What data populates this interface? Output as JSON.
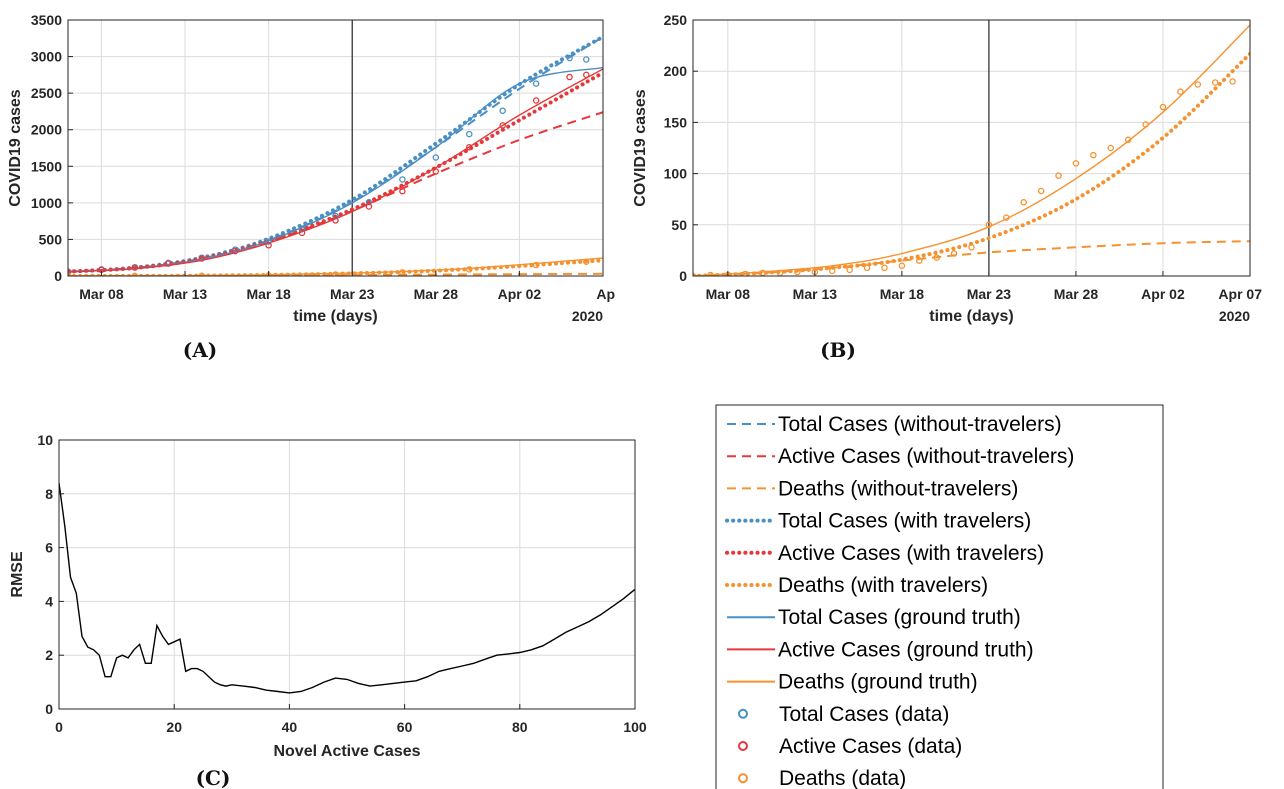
{
  "colors": {
    "total": "#4a8fc4",
    "active": "#e5383b",
    "deaths": "#f5922f",
    "rmse": "#000000"
  },
  "chart_data": [
    {
      "type": "line",
      "panel": "(A)",
      "xlabel": "time (days)",
      "ylabel": "COVID19 cases",
      "year_label": "2020",
      "x_ticks": [
        "Mar 08",
        "Mar 13",
        "Mar 18",
        "Mar 23",
        "Mar 28",
        "Apr 02",
        "Ap"
      ],
      "x_tick_days": [
        2,
        7,
        12,
        17,
        22,
        27,
        32
      ],
      "xlim_days": [
        0,
        32
      ],
      "ylim": [
        0,
        3500
      ],
      "y_ticks": [
        0,
        500,
        1000,
        1500,
        2000,
        2500,
        3000,
        3500
      ],
      "grid": true,
      "vline_day": 17,
      "series": [
        {
          "name": "Total Cases (without-travelers)",
          "group": "total",
          "style": "dashed",
          "days": [
            0,
            4,
            8,
            12,
            17,
            22,
            27,
            32
          ],
          "values": [
            60,
            110,
            240,
            490,
            1010,
            1760,
            2560,
            3270
          ]
        },
        {
          "name": "Active Cases (without-travelers)",
          "group": "active",
          "style": "dashed",
          "days": [
            0,
            4,
            8,
            12,
            17,
            22,
            27,
            32
          ],
          "values": [
            60,
            110,
            230,
            470,
            890,
            1400,
            1860,
            2240
          ]
        },
        {
          "name": "Deaths (without-travelers)",
          "group": "deaths",
          "style": "dashed",
          "days": [
            0,
            8,
            17,
            24,
            32
          ],
          "values": [
            0,
            3,
            12,
            22,
            30
          ]
        },
        {
          "name": "Total Cases (with travelers)",
          "group": "total",
          "style": "dotted",
          "days": [
            0,
            4,
            8,
            12,
            17,
            22,
            27,
            32
          ],
          "values": [
            60,
            115,
            250,
            510,
            1040,
            1810,
            2620,
            3270
          ]
        },
        {
          "name": "Active Cases (with travelers)",
          "group": "active",
          "style": "dotted",
          "days": [
            0,
            4,
            8,
            12,
            17,
            22,
            27,
            32
          ],
          "values": [
            60,
            110,
            235,
            480,
            910,
            1480,
            2130,
            2780
          ]
        },
        {
          "name": "Deaths (with travelers)",
          "group": "deaths",
          "style": "dotted",
          "days": [
            0,
            8,
            17,
            24,
            32
          ],
          "values": [
            0,
            5,
            35,
            95,
            215
          ]
        },
        {
          "name": "Total Cases (ground truth)",
          "group": "total",
          "style": "solid",
          "days": [
            0,
            4,
            8,
            12,
            17,
            22,
            27,
            32
          ],
          "values": [
            60,
            105,
            230,
            480,
            1000,
            1760,
            2630,
            2850
          ]
        },
        {
          "name": "Active Cases (ground truth)",
          "group": "active",
          "style": "solid",
          "days": [
            0,
            4,
            8,
            12,
            17,
            22,
            27,
            32
          ],
          "values": [
            55,
            100,
            215,
            450,
            880,
            1480,
            2200,
            2830
          ]
        },
        {
          "name": "Deaths (ground truth)",
          "group": "deaths",
          "style": "solid",
          "days": [
            0,
            8,
            17,
            24,
            32
          ],
          "values": [
            0,
            5,
            40,
            105,
            245
          ]
        },
        {
          "name": "Total Cases (data)",
          "group": "total",
          "style": "marker",
          "days": [
            0,
            2,
            4,
            6,
            8,
            10,
            12,
            14,
            16,
            18,
            20,
            22,
            24,
            26,
            28,
            30,
            31
          ],
          "values": [
            60,
            90,
            120,
            180,
            250,
            360,
            470,
            640,
            820,
            1010,
            1320,
            1620,
            1940,
            2260,
            2630,
            2980,
            2960
          ]
        },
        {
          "name": "Active Cases (data)",
          "group": "active",
          "style": "marker",
          "days": [
            0,
            2,
            4,
            6,
            8,
            10,
            12,
            14,
            16,
            18,
            20,
            22,
            24,
            26,
            28,
            30,
            31
          ],
          "values": [
            55,
            85,
            115,
            170,
            240,
            340,
            420,
            590,
            760,
            950,
            1160,
            1430,
            1760,
            2060,
            2400,
            2720,
            2750
          ]
        },
        {
          "name": "Deaths (data)",
          "group": "deaths",
          "style": "marker",
          "days": [
            0,
            4,
            8,
            12,
            16,
            20,
            24,
            28,
            31
          ],
          "values": [
            0,
            1,
            3,
            8,
            20,
            50,
            90,
            150,
            195
          ]
        }
      ]
    },
    {
      "type": "line",
      "panel": "(B)",
      "xlabel": "time (days)",
      "ylabel": "COVID19 cases",
      "year_label": "2020",
      "x_ticks": [
        "Mar 08",
        "Mar 13",
        "Mar 18",
        "Mar 23",
        "Mar 28",
        "Apr 02",
        "Apr 07"
      ],
      "x_tick_days": [
        2,
        7,
        12,
        17,
        22,
        27,
        32
      ],
      "xlim_days": [
        0,
        32
      ],
      "ylim": [
        0,
        250
      ],
      "y_ticks": [
        0,
        50,
        100,
        150,
        200,
        250
      ],
      "grid": true,
      "vline_day": 17,
      "series": [
        {
          "name": "Deaths (without-travelers)",
          "group": "deaths",
          "style": "dashed",
          "days": [
            0,
            4,
            8,
            12,
            17,
            22,
            27,
            32
          ],
          "values": [
            0,
            3,
            8,
            15,
            23,
            28,
            32,
            34
          ]
        },
        {
          "name": "Deaths (with travelers)",
          "group": "deaths",
          "style": "dotted",
          "days": [
            0,
            4,
            8,
            12,
            17,
            22,
            27,
            32
          ],
          "values": [
            0,
            3,
            8,
            16,
            37,
            75,
            135,
            217
          ]
        },
        {
          "name": "Deaths (ground truth)",
          "group": "deaths",
          "style": "solid",
          "days": [
            0,
            4,
            8,
            12,
            17,
            22,
            27,
            32
          ],
          "values": [
            0,
            4,
            10,
            22,
            48,
            95,
            160,
            245
          ]
        },
        {
          "name": "Deaths (data)",
          "group": "deaths",
          "style": "marker",
          "days": [
            0,
            1,
            2,
            3,
            4,
            5,
            6,
            7,
            8,
            9,
            10,
            11,
            12,
            13,
            14,
            15,
            16,
            17,
            18,
            19,
            20,
            21,
            22,
            23,
            24,
            25,
            26,
            27,
            28,
            29,
            30,
            31
          ],
          "values": [
            0,
            1,
            1,
            2,
            3,
            3,
            4,
            4,
            5,
            6,
            8,
            8,
            10,
            15,
            18,
            22,
            28,
            50,
            57,
            72,
            83,
            98,
            110,
            118,
            125,
            133,
            148,
            165,
            180,
            187,
            189,
            190
          ]
        }
      ]
    },
    {
      "type": "line",
      "panel": "(C)",
      "xlabel": "Novel Active Cases",
      "ylabel": "RMSE",
      "xlim": [
        0,
        100
      ],
      "ylim": [
        0,
        10
      ],
      "x_ticks": [
        0,
        20,
        40,
        60,
        80,
        100
      ],
      "y_ticks": [
        0,
        2,
        4,
        6,
        8,
        10
      ],
      "grid": true,
      "series": [
        {
          "group": "rmse",
          "style": "solid",
          "x": [
            0,
            1,
            2,
            3,
            4,
            5,
            6,
            7,
            8,
            9,
            10,
            11,
            12,
            13,
            14,
            15,
            16,
            17,
            18,
            19,
            20,
            21,
            22,
            23,
            24,
            25,
            26,
            27,
            28,
            29,
            30,
            32,
            34,
            36,
            38,
            40,
            42,
            44,
            46,
            48,
            50,
            52,
            54,
            56,
            58,
            60,
            62,
            64,
            66,
            68,
            70,
            72,
            74,
            76,
            78,
            80,
            82,
            84,
            86,
            88,
            90,
            92,
            94,
            96,
            98,
            100
          ],
          "values": [
            8.4,
            6.8,
            4.9,
            4.3,
            2.7,
            2.3,
            2.2,
            2.0,
            1.2,
            1.2,
            1.9,
            2.0,
            1.9,
            2.2,
            2.4,
            1.7,
            1.7,
            3.1,
            2.7,
            2.4,
            2.5,
            2.6,
            1.4,
            1.5,
            1.5,
            1.4,
            1.2,
            1.0,
            0.9,
            0.85,
            0.9,
            0.85,
            0.8,
            0.7,
            0.65,
            0.6,
            0.65,
            0.8,
            1.0,
            1.15,
            1.1,
            0.95,
            0.85,
            0.9,
            0.95,
            1.0,
            1.05,
            1.2,
            1.4,
            1.5,
            1.6,
            1.7,
            1.85,
            2.0,
            2.05,
            2.1,
            2.2,
            2.35,
            2.6,
            2.85,
            3.05,
            3.25,
            3.5,
            3.8,
            4.1,
            4.45
          ]
        }
      ]
    }
  ],
  "legend": {
    "items": [
      {
        "label": "Total Cases (without-travelers)",
        "group": "total",
        "style": "dashed"
      },
      {
        "label": "Active Cases (without-travelers)",
        "group": "active",
        "style": "dashed"
      },
      {
        "label": "Deaths (without-travelers)",
        "group": "deaths",
        "style": "dashed"
      },
      {
        "label": "Total Cases (with travelers)",
        "group": "total",
        "style": "dotted"
      },
      {
        "label": "Active Cases (with travelers)",
        "group": "active",
        "style": "dotted"
      },
      {
        "label": "Deaths (with travelers)",
        "group": "deaths",
        "style": "dotted"
      },
      {
        "label": "Total Cases (ground truth)",
        "group": "total",
        "style": "solid"
      },
      {
        "label": "Active Cases (ground truth)",
        "group": "active",
        "style": "solid"
      },
      {
        "label": "Deaths (ground truth)",
        "group": "deaths",
        "style": "solid"
      },
      {
        "label": "Total Cases (data)",
        "group": "total",
        "style": "marker"
      },
      {
        "label": "Active Cases (data)",
        "group": "active",
        "style": "marker"
      },
      {
        "label": "Deaths (data)",
        "group": "deaths",
        "style": "marker"
      }
    ]
  }
}
